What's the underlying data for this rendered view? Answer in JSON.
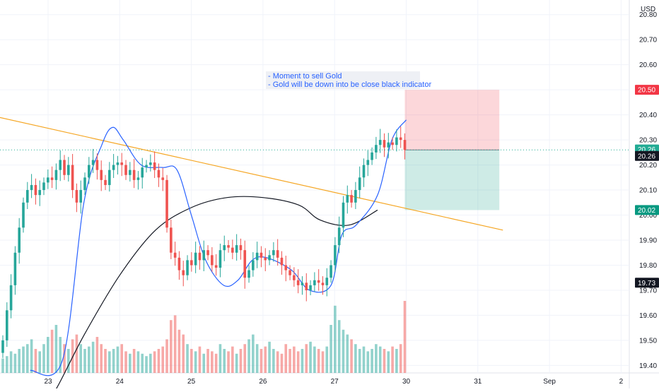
{
  "chart": {
    "currency": "USD",
    "note_lines": [
      "- Moment to sell Gold",
      "- Gold will be down into be close black indicator"
    ],
    "price_badges": [
      {
        "value": "20.50",
        "color": "#f23645",
        "price": 20.5
      },
      {
        "value": "20.26",
        "color": "#22ab94",
        "price": 20.262
      },
      {
        "value": "20.26",
        "color": "#131722",
        "price": 20.236
      },
      {
        "value": "20.02",
        "color": "#089981",
        "price": 20.02
      },
      {
        "value": "19.73",
        "color": "#131722",
        "price": 19.73
      }
    ]
  },
  "chart_data": {
    "type": "candlestick",
    "x_axis_labels": [
      "23",
      "24",
      "25",
      "26",
      "27",
      "30",
      "31",
      "Sep",
      "2"
    ],
    "y_axis_labels": [
      "20.80",
      "20.70",
      "20.60",
      "20.50",
      "20.40",
      "20.30",
      "20.20",
      "20.10",
      "20.00",
      "19.90",
      "19.80",
      "19.70",
      "19.60",
      "19.50",
      "19.40"
    ],
    "y_range": [
      19.37,
      20.85
    ],
    "current_price": 20.26,
    "colors": {
      "up": "#26a69a",
      "down": "#ef5350",
      "trendline": "#f5a623",
      "blue_indicator": "#2962ff",
      "black_indicator": "#131722"
    },
    "trade_zone": {
      "entry": 20.26,
      "stop": 20.5,
      "target": 20.02
    },
    "trendline": [
      {
        "x": "22",
        "y": 20.39
      },
      {
        "x": "31",
        "y": 19.94
      }
    ],
    "closes": [
      19.5,
      19.62,
      19.72,
      19.85,
      19.95,
      20.05,
      20.1,
      20.12,
      20.08,
      20.1,
      20.13,
      20.15,
      20.14,
      20.18,
      20.22,
      20.16,
      20.2,
      20.1,
      20.05,
      20.1,
      20.15,
      20.2,
      20.22,
      20.18,
      20.14,
      20.12,
      20.18,
      20.2,
      20.21,
      20.2,
      20.16,
      20.18,
      20.14,
      20.15,
      20.19,
      20.2,
      20.21,
      20.18,
      20.15,
      20.14,
      19.95,
      19.85,
      19.83,
      19.78,
      19.76,
      19.82,
      19.8,
      19.85,
      19.82,
      19.86,
      19.84,
      19.8,
      19.79,
      19.86,
      19.88,
      19.87,
      19.85,
      19.88,
      19.86,
      19.75,
      19.78,
      19.82,
      19.85,
      19.83,
      19.82,
      19.84,
      19.86,
      19.83,
      19.8,
      19.78,
      19.76,
      19.74,
      19.72,
      19.73,
      19.7,
      19.72,
      19.74,
      19.73,
      19.72,
      19.75,
      19.8,
      19.88,
      19.95,
      20.05,
      20.08,
      20.05,
      20.1,
      20.15,
      20.2,
      20.22,
      20.25,
      20.28,
      20.3,
      20.27,
      20.29,
      20.28,
      20.31,
      20.3,
      20.26
    ],
    "volumes": [
      6,
      7,
      9,
      8,
      10,
      11,
      12,
      14,
      10,
      9,
      12,
      15,
      18,
      20,
      15,
      12,
      10,
      14,
      16,
      12,
      10,
      11,
      13,
      15,
      12,
      10,
      9,
      10,
      11,
      12,
      9,
      8,
      10,
      9,
      8,
      7,
      8,
      9,
      10,
      11,
      14,
      22,
      24,
      18,
      16,
      12,
      10,
      9,
      11,
      8,
      10,
      9,
      8,
      12,
      10,
      9,
      11,
      8,
      10,
      12,
      14,
      16,
      12,
      10,
      11,
      13,
      10,
      9,
      8,
      12,
      10,
      11,
      9,
      10,
      12,
      13,
      11,
      10,
      9,
      11,
      20,
      28,
      22,
      18,
      16,
      14,
      12,
      10,
      11,
      9,
      10,
      12,
      11,
      10,
      9,
      11,
      10,
      12,
      30
    ],
    "black_indicator": [
      {
        "x": 0.0,
        "y": 19.3
      },
      {
        "x": 0.1,
        "y": 19.3
      },
      {
        "x": 0.5,
        "y": 19.52
      },
      {
        "x": 1.0,
        "y": 19.76
      },
      {
        "x": 1.5,
        "y": 19.94
      },
      {
        "x": 2.0,
        "y": 20.03
      },
      {
        "x": 2.5,
        "y": 20.07
      },
      {
        "x": 3.0,
        "y": 20.07
      },
      {
        "x": 3.5,
        "y": 20.04
      },
      {
        "x": 3.8,
        "y": 19.98
      },
      {
        "x": 4.2,
        "y": 19.96
      },
      {
        "x": 4.6,
        "y": 20.02
      }
    ],
    "blue_indicator": [
      {
        "x": -0.25,
        "y": 19.38
      },
      {
        "x": 0.2,
        "y": 19.42
      },
      {
        "x": 0.5,
        "y": 20.05
      },
      {
        "x": 0.75,
        "y": 20.28
      },
      {
        "x": 0.9,
        "y": 20.35
      },
      {
        "x": 1.05,
        "y": 20.3
      },
      {
        "x": 1.3,
        "y": 20.2
      },
      {
        "x": 1.6,
        "y": 20.19
      },
      {
        "x": 1.8,
        "y": 20.18
      },
      {
        "x": 2.0,
        "y": 20.0
      },
      {
        "x": 2.2,
        "y": 19.82
      },
      {
        "x": 2.45,
        "y": 19.72
      },
      {
        "x": 2.65,
        "y": 19.74
      },
      {
        "x": 2.85,
        "y": 19.82
      },
      {
        "x": 3.05,
        "y": 19.83
      },
      {
        "x": 3.4,
        "y": 19.78
      },
      {
        "x": 3.65,
        "y": 19.7
      },
      {
        "x": 3.95,
        "y": 19.72
      },
      {
        "x": 4.1,
        "y": 19.92
      },
      {
        "x": 4.3,
        "y": 19.96
      },
      {
        "x": 4.6,
        "y": 20.08
      },
      {
        "x": 4.8,
        "y": 20.3
      },
      {
        "x": 5.0,
        "y": 20.38
      }
    ]
  }
}
